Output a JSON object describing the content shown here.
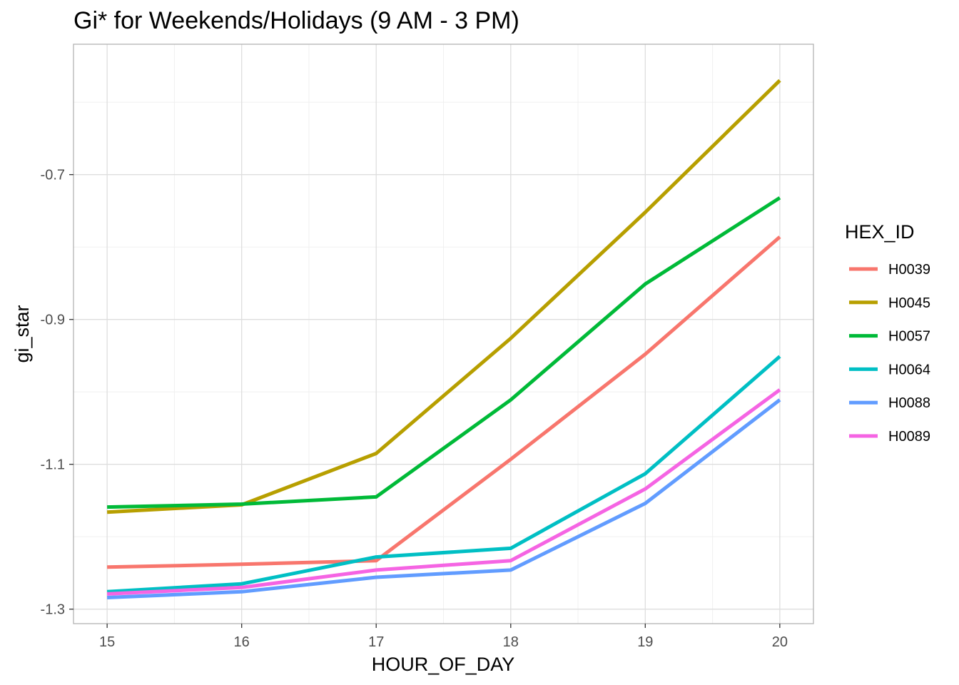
{
  "chart_data": {
    "type": "line",
    "title": "Gi* for Weekends/Holidays (9 AM - 3 PM)",
    "xlabel": "HOUR_OF_DAY",
    "ylabel": "gi_star",
    "x": [
      15,
      16,
      17,
      18,
      19,
      20
    ],
    "x_ticks": [
      "15",
      "16",
      "17",
      "18",
      "19",
      "20"
    ],
    "y_ticks": [
      "-1.3",
      "-1.1",
      "-0.9",
      "-0.7"
    ],
    "y_tick_values": [
      -1.3,
      -1.1,
      -0.9,
      -0.7
    ],
    "xlim": [
      14.75,
      20.25
    ],
    "ylim": [
      -1.32,
      -0.52
    ],
    "grid": true,
    "legend_title": "HEX_ID",
    "legend_position": "right",
    "series": [
      {
        "name": "H0039",
        "color": "#F8766D",
        "values": [
          -1.242,
          -1.238,
          -1.233,
          -1.093,
          -0.948,
          -0.786
        ]
      },
      {
        "name": "H0045",
        "color": "#B79F00",
        "values": [
          -1.166,
          -1.156,
          -1.085,
          -0.926,
          -0.752,
          -0.57
        ]
      },
      {
        "name": "H0057",
        "color": "#00BA38",
        "values": [
          -1.159,
          -1.155,
          -1.145,
          -1.011,
          -0.851,
          -0.732
        ]
      },
      {
        "name": "H0064",
        "color": "#00BFC4",
        "values": [
          -1.276,
          -1.265,
          -1.228,
          -1.216,
          -1.113,
          -0.951
        ]
      },
      {
        "name": "H0088",
        "color": "#619CFF",
        "values": [
          -1.284,
          -1.276,
          -1.256,
          -1.246,
          -1.154,
          -1.011
        ]
      },
      {
        "name": "H0089",
        "color": "#F564E3",
        "values": [
          -1.279,
          -1.27,
          -1.246,
          -1.233,
          -1.134,
          -0.997
        ]
      }
    ]
  }
}
